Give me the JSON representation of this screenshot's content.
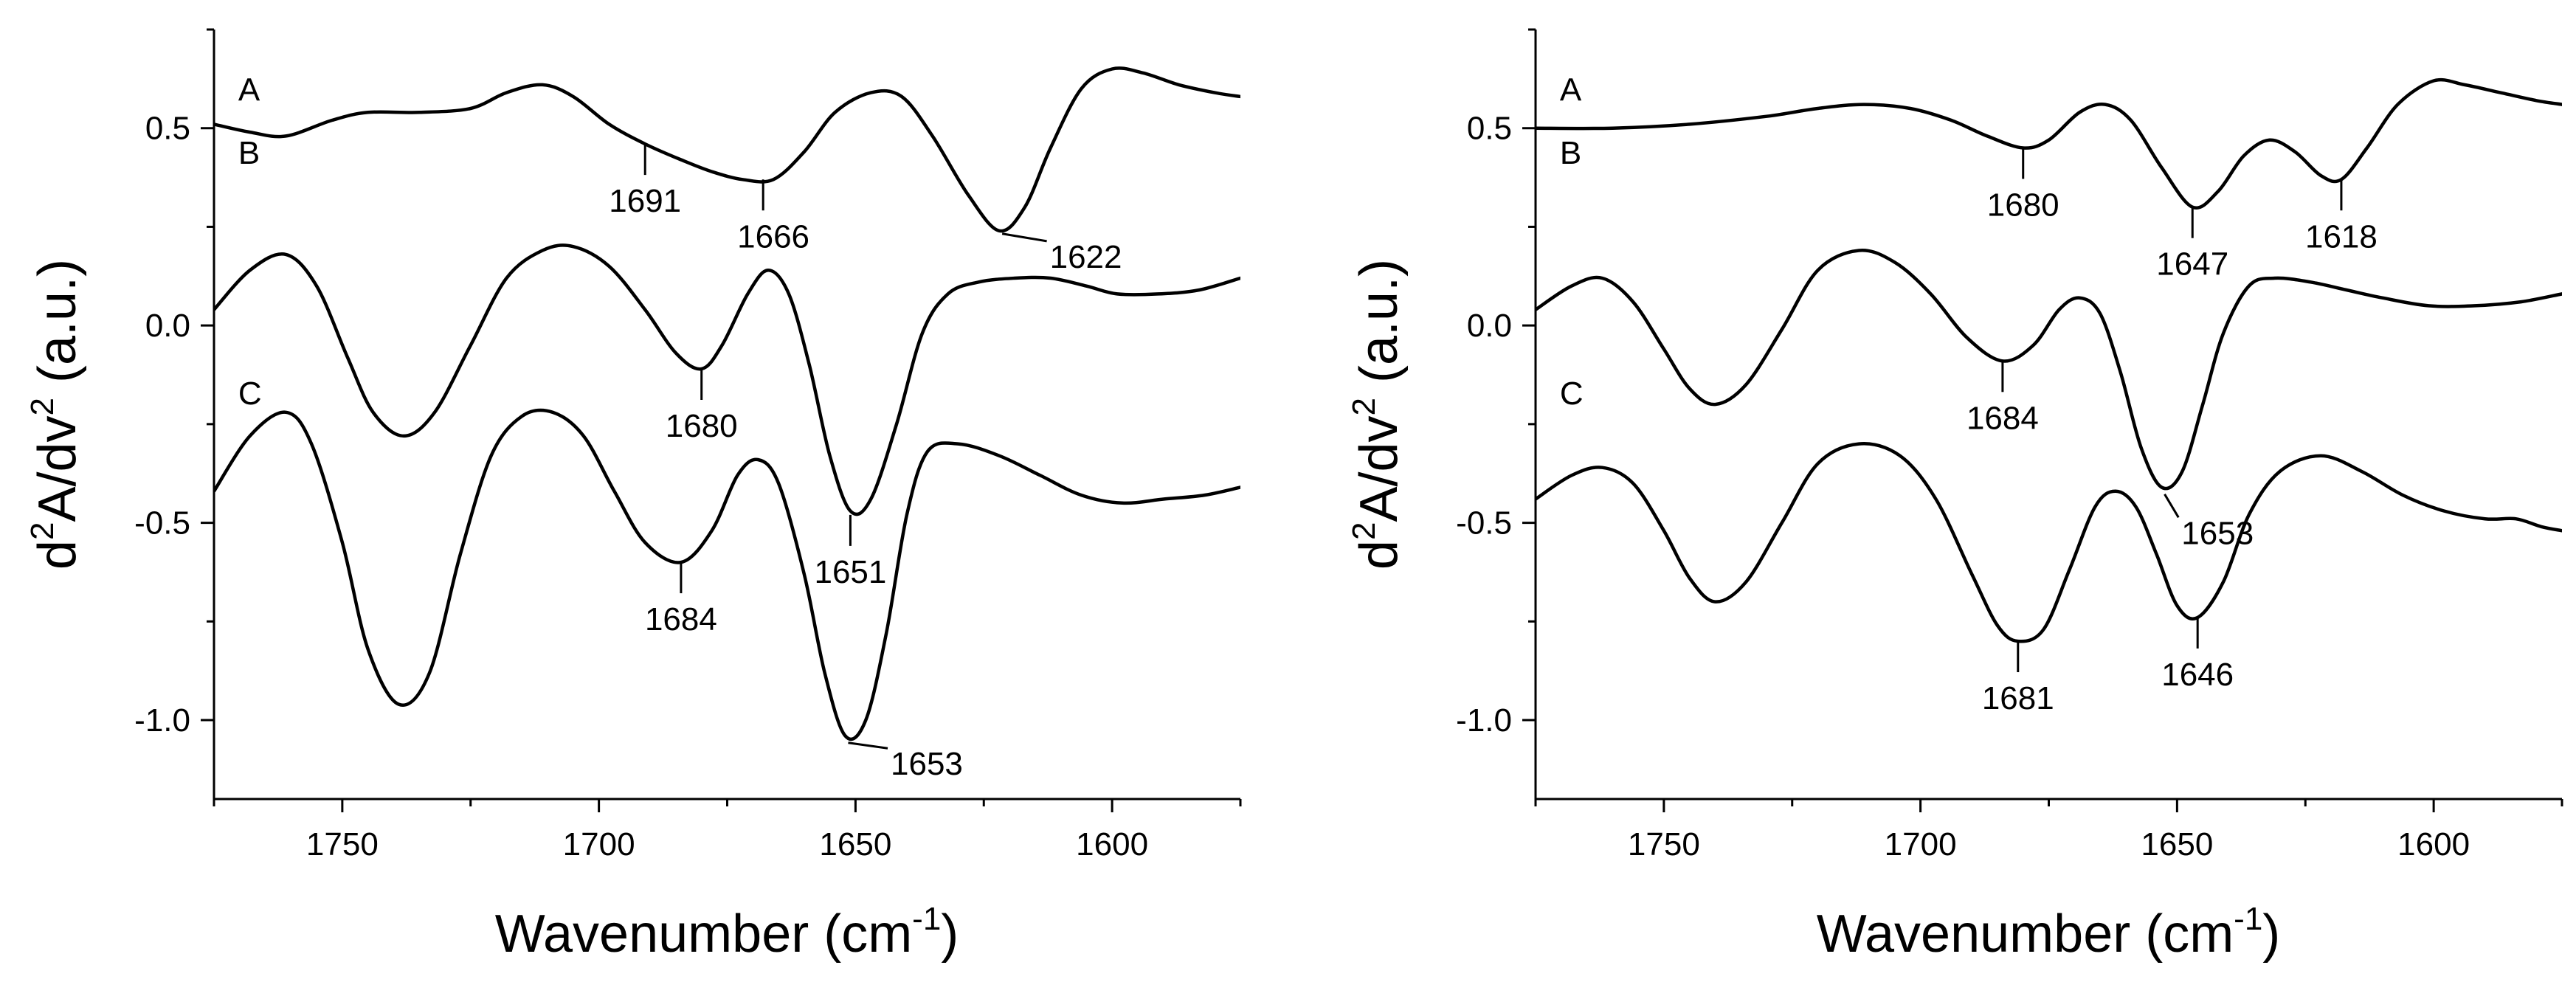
{
  "chart_data": [
    {
      "type": "line",
      "title": "",
      "xlabel": "Wavenumber (cm",
      "xlabel_sup": "-1",
      "xlabel_suffix": ")",
      "ylabel_prefix": "d",
      "ylabel_sup1": "2",
      "ylabel_mid": "A/dv",
      "ylabel_sup2": "2",
      "ylabel_suffix": " (a.u.)",
      "xlim": [
        1775,
        1575
      ],
      "ylim": [
        -1.2,
        0.75
      ],
      "x_reversed": true,
      "xticks": [
        1750,
        1700,
        1650,
        1600
      ],
      "xtick_labels": [
        "1750",
        "1700",
        "1650",
        "1600"
      ],
      "yticks": [
        0.5,
        0.0,
        -0.5,
        -1.0
      ],
      "ytick_labels": [
        "0.5",
        "0.0",
        "-0.5",
        "-1.0"
      ],
      "grid": false,
      "series": [
        {
          "label": "A",
          "points": [
            [
              1775,
              0.51
            ],
            [
              1768,
              0.49
            ],
            [
              1761,
              0.48
            ],
            [
              1752,
              0.52
            ],
            [
              1745,
              0.54
            ],
            [
              1735,
              0.54
            ],
            [
              1725,
              0.55
            ],
            [
              1718,
              0.59
            ],
            [
              1711,
              0.61
            ],
            [
              1705,
              0.58
            ],
            [
              1698,
              0.51
            ],
            [
              1691,
              0.46
            ],
            [
              1684,
              0.42
            ],
            [
              1678,
              0.39
            ],
            [
              1672,
              0.37
            ],
            [
              1666,
              0.37
            ],
            [
              1660,
              0.44
            ],
            [
              1654,
              0.54
            ],
            [
              1647,
              0.59
            ],
            [
              1641,
              0.58
            ],
            [
              1635,
              0.48
            ],
            [
              1628,
              0.33
            ],
            [
              1622,
              0.24
            ],
            [
              1617,
              0.3
            ],
            [
              1612,
              0.45
            ],
            [
              1606,
              0.6
            ],
            [
              1600,
              0.65
            ],
            [
              1594,
              0.64
            ],
            [
              1587,
              0.61
            ],
            [
              1580,
              0.59
            ],
            [
              1575,
              0.58
            ]
          ]
        },
        {
          "label": "B",
          "points": [
            [
              1775,
              0.04
            ],
            [
              1768,
              0.14
            ],
            [
              1761,
              0.18
            ],
            [
              1755,
              0.1
            ],
            [
              1749,
              -0.08
            ],
            [
              1744,
              -0.22
            ],
            [
              1738,
              -0.28
            ],
            [
              1732,
              -0.22
            ],
            [
              1725,
              -0.05
            ],
            [
              1718,
              0.12
            ],
            [
              1711,
              0.19
            ],
            [
              1705,
              0.2
            ],
            [
              1698,
              0.15
            ],
            [
              1691,
              0.04
            ],
            [
              1685,
              -0.07
            ],
            [
              1680,
              -0.11
            ],
            [
              1676,
              -0.05
            ],
            [
              1671,
              0.08
            ],
            [
              1667,
              0.14
            ],
            [
              1663,
              0.08
            ],
            [
              1659,
              -0.1
            ],
            [
              1655,
              -0.33
            ],
            [
              1651,
              -0.47
            ],
            [
              1647,
              -0.44
            ],
            [
              1642,
              -0.25
            ],
            [
              1637,
              -0.02
            ],
            [
              1632,
              0.08
            ],
            [
              1626,
              0.11
            ],
            [
              1619,
              0.12
            ],
            [
              1612,
              0.12
            ],
            [
              1605,
              0.1
            ],
            [
              1599,
              0.08
            ],
            [
              1591,
              0.08
            ],
            [
              1583,
              0.09
            ],
            [
              1575,
              0.12
            ]
          ]
        },
        {
          "label": "C",
          "points": [
            [
              1775,
              -0.42
            ],
            [
              1768,
              -0.28
            ],
            [
              1761,
              -0.22
            ],
            [
              1756,
              -0.3
            ],
            [
              1750,
              -0.55
            ],
            [
              1745,
              -0.82
            ],
            [
              1739,
              -0.96
            ],
            [
              1733,
              -0.88
            ],
            [
              1727,
              -0.58
            ],
            [
              1721,
              -0.33
            ],
            [
              1715,
              -0.23
            ],
            [
              1709,
              -0.22
            ],
            [
              1703,
              -0.28
            ],
            [
              1697,
              -0.42
            ],
            [
              1691,
              -0.55
            ],
            [
              1684,
              -0.6
            ],
            [
              1678,
              -0.52
            ],
            [
              1673,
              -0.38
            ],
            [
              1669,
              -0.34
            ],
            [
              1665,
              -0.4
            ],
            [
              1660,
              -0.63
            ],
            [
              1656,
              -0.88
            ],
            [
              1652,
              -1.04
            ],
            [
              1648,
              -1.0
            ],
            [
              1644,
              -0.78
            ],
            [
              1640,
              -0.48
            ],
            [
              1636,
              -0.32
            ],
            [
              1630,
              -0.3
            ],
            [
              1622,
              -0.33
            ],
            [
              1614,
              -0.38
            ],
            [
              1606,
              -0.43
            ],
            [
              1598,
              -0.45
            ],
            [
              1590,
              -0.44
            ],
            [
              1582,
              -0.43
            ],
            [
              1575,
              -0.41
            ]
          ]
        }
      ],
      "series_labels": [
        {
          "text": "A",
          "x": 1772,
          "y": 0.57
        },
        {
          "text": "B",
          "x": 1772,
          "y": 0.41
        },
        {
          "text": "C",
          "x": 1772,
          "y": -0.2
        }
      ],
      "annotations": [
        {
          "text": "1691",
          "x": 1691,
          "y": 0.46,
          "tx": 1691,
          "ty": 0.345,
          "leader": "down"
        },
        {
          "text": "1666",
          "x": 1668,
          "y": 0.37,
          "tx": 1666,
          "ty": 0.235,
          "leader": "down"
        },
        {
          "text": "1622",
          "x": 1622,
          "y": 0.24,
          "tx": 1611,
          "ty": 0.165,
          "leader": "diag"
        },
        {
          "text": "1680",
          "x": 1680,
          "y": -0.11,
          "tx": 1680,
          "ty": -0.255,
          "leader": "down"
        },
        {
          "text": "1651",
          "x": 1651,
          "y": -0.48,
          "tx": 1651,
          "ty": -0.625,
          "leader": "down"
        },
        {
          "text": "1684",
          "x": 1684,
          "y": -0.6,
          "tx": 1684,
          "ty": -0.745,
          "leader": "down"
        },
        {
          "text": "1653",
          "x": 1652,
          "y": -1.05,
          "tx": 1642,
          "ty": -1.12,
          "leader": "diag"
        }
      ]
    },
    {
      "type": "line",
      "title": "",
      "xlabel": "Wavenumber (cm",
      "xlabel_sup": "-1",
      "xlabel_suffix": ")",
      "ylabel_prefix": "d",
      "ylabel_sup1": "2",
      "ylabel_mid": "A/dv",
      "ylabel_sup2": "2",
      "ylabel_suffix": " (a.u.)",
      "xlim": [
        1775,
        1575
      ],
      "ylim": [
        -1.2,
        0.75
      ],
      "x_reversed": true,
      "xticks": [
        1750,
        1700,
        1650,
        1600
      ],
      "xtick_labels": [
        "1750",
        "1700",
        "1650",
        "1600"
      ],
      "yticks": [
        0.5,
        0.0,
        -0.5,
        -1.0
      ],
      "ytick_labels": [
        "0.5",
        "0.0",
        "-0.5",
        "-1.0"
      ],
      "grid": false,
      "series": [
        {
          "label": "A",
          "points": [
            [
              1775,
              0.5
            ],
            [
              1760,
              0.5
            ],
            [
              1745,
              0.51
            ],
            [
              1730,
              0.53
            ],
            [
              1720,
              0.55
            ],
            [
              1711,
              0.56
            ],
            [
              1702,
              0.55
            ],
            [
              1694,
              0.52
            ],
            [
              1687,
              0.48
            ],
            [
              1680,
              0.45
            ],
            [
              1675,
              0.47
            ],
            [
              1669,
              0.54
            ],
            [
              1664,
              0.56
            ],
            [
              1659,
              0.52
            ],
            [
              1653,
              0.4
            ],
            [
              1647,
              0.3
            ],
            [
              1642,
              0.34
            ],
            [
              1637,
              0.43
            ],
            [
              1632,
              0.47
            ],
            [
              1627,
              0.44
            ],
            [
              1622,
              0.38
            ],
            [
              1618,
              0.37
            ],
            [
              1613,
              0.45
            ],
            [
              1607,
              0.56
            ],
            [
              1600,
              0.62
            ],
            [
              1594,
              0.61
            ],
            [
              1587,
              0.59
            ],
            [
              1580,
              0.57
            ],
            [
              1575,
              0.56
            ]
          ]
        },
        {
          "label": "B",
          "points": [
            [
              1775,
              0.04
            ],
            [
              1768,
              0.1
            ],
            [
              1762,
              0.12
            ],
            [
              1756,
              0.06
            ],
            [
              1750,
              -0.06
            ],
            [
              1745,
              -0.16
            ],
            [
              1740,
              -0.2
            ],
            [
              1734,
              -0.15
            ],
            [
              1727,
              -0.01
            ],
            [
              1720,
              0.14
            ],
            [
              1712,
              0.19
            ],
            [
              1705,
              0.16
            ],
            [
              1698,
              0.08
            ],
            [
              1691,
              -0.03
            ],
            [
              1684,
              -0.09
            ],
            [
              1678,
              -0.05
            ],
            [
              1673,
              0.04
            ],
            [
              1669,
              0.07
            ],
            [
              1665,
              0.03
            ],
            [
              1661,
              -0.12
            ],
            [
              1657,
              -0.31
            ],
            [
              1653,
              -0.41
            ],
            [
              1649,
              -0.37
            ],
            [
              1645,
              -0.2
            ],
            [
              1641,
              -0.02
            ],
            [
              1636,
              0.1
            ],
            [
              1631,
              0.12
            ],
            [
              1624,
              0.11
            ],
            [
              1617,
              0.09
            ],
            [
              1610,
              0.07
            ],
            [
              1601,
              0.05
            ],
            [
              1592,
              0.05
            ],
            [
              1583,
              0.06
            ],
            [
              1575,
              0.08
            ]
          ]
        },
        {
          "label": "C",
          "points": [
            [
              1775,
              -0.44
            ],
            [
              1768,
              -0.38
            ],
            [
              1762,
              -0.36
            ],
            [
              1756,
              -0.4
            ],
            [
              1750,
              -0.52
            ],
            [
              1745,
              -0.64
            ],
            [
              1740,
              -0.7
            ],
            [
              1734,
              -0.65
            ],
            [
              1727,
              -0.5
            ],
            [
              1720,
              -0.35
            ],
            [
              1712,
              -0.3
            ],
            [
              1704,
              -0.33
            ],
            [
              1697,
              -0.44
            ],
            [
              1690,
              -0.63
            ],
            [
              1685,
              -0.76
            ],
            [
              1681,
              -0.8
            ],
            [
              1676,
              -0.77
            ],
            [
              1671,
              -0.62
            ],
            [
              1666,
              -0.46
            ],
            [
              1662,
              -0.42
            ],
            [
              1658,
              -0.46
            ],
            [
              1654,
              -0.58
            ],
            [
              1650,
              -0.71
            ],
            [
              1646,
              -0.74
            ],
            [
              1641,
              -0.65
            ],
            [
              1636,
              -0.48
            ],
            [
              1630,
              -0.37
            ],
            [
              1622,
              -0.33
            ],
            [
              1614,
              -0.37
            ],
            [
              1606,
              -0.43
            ],
            [
              1598,
              -0.47
            ],
            [
              1590,
              -0.49
            ],
            [
              1584,
              -0.49
            ],
            [
              1579,
              -0.51
            ],
            [
              1575,
              -0.52
            ]
          ]
        }
      ],
      "series_labels": [
        {
          "text": "A",
          "x": 1772,
          "y": 0.57
        },
        {
          "text": "B",
          "x": 1772,
          "y": 0.41
        },
        {
          "text": "C",
          "x": 1772,
          "y": -0.2
        }
      ],
      "annotations": [
        {
          "text": "1680",
          "x": 1680,
          "y": 0.45,
          "tx": 1680,
          "ty": 0.31,
          "leader": "down"
        },
        {
          "text": "1647",
          "x": 1647,
          "y": 0.3,
          "tx": 1647,
          "ty": 0.165,
          "leader": "down"
        },
        {
          "text": "1618",
          "x": 1618,
          "y": 0.37,
          "tx": 1618,
          "ty": 0.225,
          "leader": "down"
        },
        {
          "text": "1684",
          "x": 1684,
          "y": -0.09,
          "tx": 1684,
          "ty": -0.235,
          "leader": "down"
        },
        {
          "text": "1653",
          "x": 1653,
          "y": -0.42,
          "tx": 1648,
          "ty": -0.535,
          "leader": "diag"
        },
        {
          "text": "1681",
          "x": 1681,
          "y": -0.8,
          "tx": 1681,
          "ty": -0.945,
          "leader": "down"
        },
        {
          "text": "1646",
          "x": 1646,
          "y": -0.74,
          "tx": 1646,
          "ty": -0.885,
          "leader": "down"
        }
      ]
    }
  ]
}
